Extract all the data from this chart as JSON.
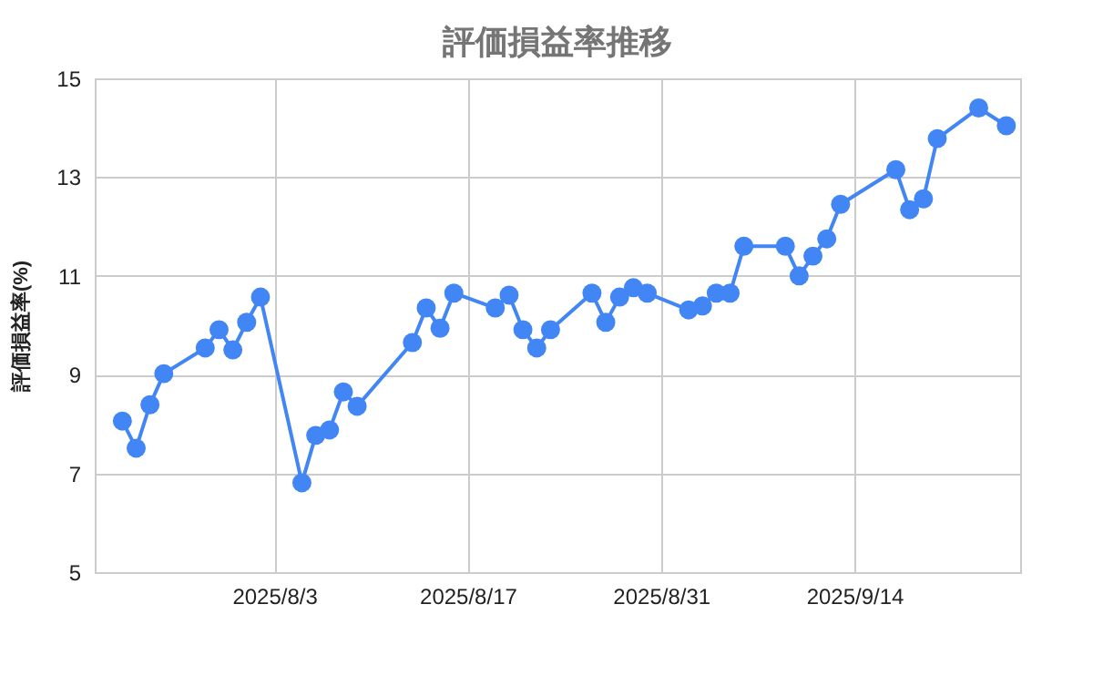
{
  "chart_data": {
    "type": "line",
    "title": "評価損益率推移",
    "ylabel": "評価損益率(%)",
    "x": [
      "2025-07-23",
      "2025-07-24",
      "2025-07-25",
      "2025-07-26",
      "2025-07-29",
      "2025-07-30",
      "2025-07-31",
      "2025-08-01",
      "2025-08-02",
      "2025-08-05",
      "2025-08-06",
      "2025-08-07",
      "2025-08-08",
      "2025-08-09",
      "2025-08-13",
      "2025-08-14",
      "2025-08-15",
      "2025-08-16",
      "2025-08-19",
      "2025-08-20",
      "2025-08-21",
      "2025-08-22",
      "2025-08-23",
      "2025-08-26",
      "2025-08-27",
      "2025-08-28",
      "2025-08-29",
      "2025-08-30",
      "2025-09-02",
      "2025-09-03",
      "2025-09-04",
      "2025-09-05",
      "2025-09-06",
      "2025-09-09",
      "2025-09-10",
      "2025-09-11",
      "2025-09-12",
      "2025-09-13",
      "2025-09-17",
      "2025-09-18",
      "2025-09-19",
      "2025-09-20",
      "2025-09-23",
      "2025-09-25"
    ],
    "series": [
      {
        "color": "#4285f4",
        "values": [
          8.06,
          7.51,
          8.39,
          9.02,
          9.54,
          9.91,
          9.5,
          10.06,
          10.57,
          6.81,
          7.77,
          7.88,
          8.65,
          8.36,
          9.65,
          10.35,
          9.94,
          10.65,
          10.35,
          10.61,
          9.91,
          9.54,
          9.91,
          10.65,
          10.06,
          10.57,
          10.76,
          10.65,
          10.31,
          10.39,
          10.65,
          10.65,
          11.6,
          11.6,
          11.0,
          11.4,
          11.75,
          12.45,
          13.15,
          12.34,
          12.56,
          13.78,
          14.4,
          14.04
        ]
      }
    ],
    "xlim": [
      "2025-07-21",
      "2025-09-26"
    ],
    "xticks": [
      {
        "value": "2025-08-03",
        "label": "2025/8/3"
      },
      {
        "value": "2025-08-17",
        "label": "2025/8/17"
      },
      {
        "value": "2025-08-31",
        "label": "2025/8/31"
      },
      {
        "value": "2025-09-14",
        "label": "2025/9/14"
      }
    ],
    "ylim": [
      5,
      15
    ],
    "yticks": [
      5,
      7,
      9,
      11,
      13,
      15
    ],
    "grid": true,
    "marker": "circle",
    "line_style": "solid",
    "legend": false
  }
}
